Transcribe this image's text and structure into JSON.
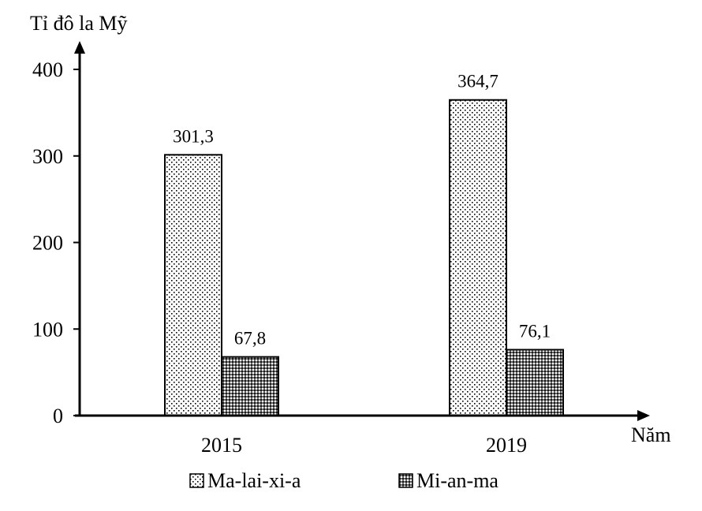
{
  "chart_data": {
    "type": "bar",
    "title": "",
    "ylabel": "Tỉ đô la Mỹ",
    "xlabel": "Năm",
    "categories": [
      "2015",
      "2019"
    ],
    "ylim": [
      0,
      400
    ],
    "yticks": [
      0,
      100,
      200,
      300,
      400
    ],
    "grid": false,
    "legend_position": "bottom",
    "series": [
      {
        "name": "Ma-lai-xi-a",
        "values": [
          301.3,
          364.7
        ],
        "value_labels": [
          "301,3",
          "364,7"
        ],
        "pattern": "dotted",
        "color": "#000000"
      },
      {
        "name": "Mi-an-ma",
        "values": [
          67.8,
          76.1
        ],
        "value_labels": [
          "67,8",
          "76,1"
        ],
        "pattern": "crosshatch",
        "color": "#000000"
      }
    ]
  }
}
